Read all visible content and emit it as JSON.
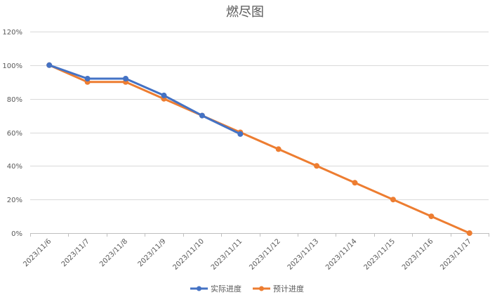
{
  "chart_data": {
    "type": "line",
    "title": "燃尽图",
    "xlabel": "",
    "ylabel": "",
    "categories": [
      "2023/11/6",
      "2023/11/7",
      "2023/11/8",
      "2023/11/9",
      "2023/11/10",
      "2023/11/11",
      "2023/11/12",
      "2023/11/13",
      "2023/11/14",
      "2023/11/15",
      "2023/11/16",
      "2023/11/17"
    ],
    "ylim": [
      0,
      1.2
    ],
    "yticks": [
      0,
      0.2,
      0.4,
      0.6,
      0.8,
      1.0,
      1.2
    ],
    "ytick_labels": [
      "0%",
      "20%",
      "40%",
      "60%",
      "80%",
      "100%",
      "120%"
    ],
    "grid": true,
    "legend_position": "bottom",
    "series": [
      {
        "name": "实际进度",
        "color": "#4472C4",
        "values": [
          1.0,
          0.92,
          0.92,
          0.82,
          0.7,
          0.59,
          null,
          null,
          null,
          null,
          null,
          null
        ]
      },
      {
        "name": "预计进度",
        "color": "#ED7D31",
        "values": [
          1.0,
          0.9,
          0.9,
          0.8,
          0.7,
          0.6,
          0.5,
          0.4,
          0.3,
          0.2,
          0.1,
          0.0
        ]
      }
    ]
  }
}
